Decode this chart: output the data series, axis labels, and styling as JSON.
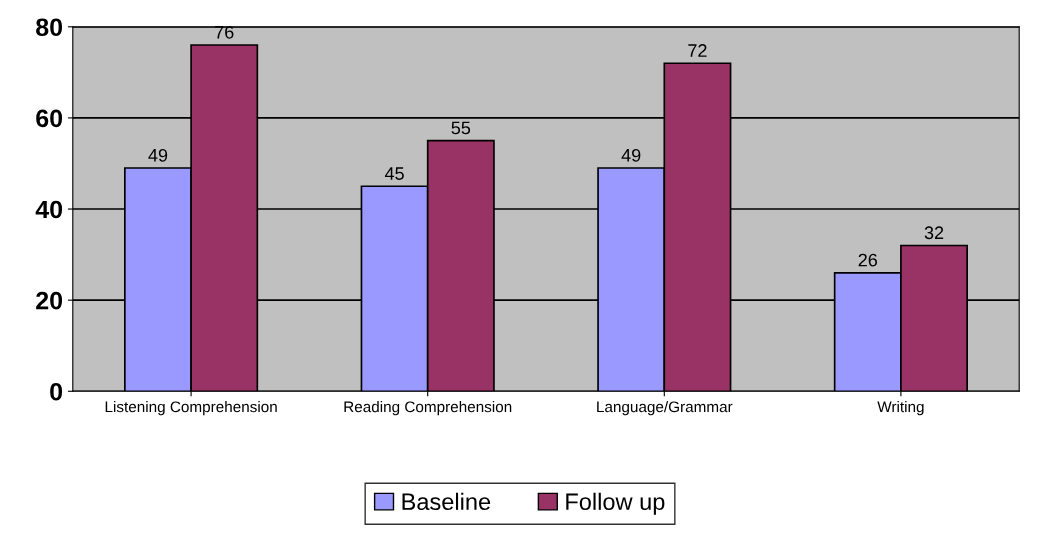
{
  "chart_data": {
    "type": "bar",
    "categories": [
      "Listening Comprehension",
      "Reading Comprehension",
      "Language/Grammar",
      "Writing"
    ],
    "series": [
      {
        "name": "Baseline",
        "color": "#9999ff",
        "values": [
          49,
          45,
          49,
          26
        ]
      },
      {
        "name": "Follow up",
        "color": "#993366",
        "values": [
          76,
          55,
          72,
          32
        ]
      }
    ],
    "ylim": [
      0,
      80
    ],
    "yticks": [
      0,
      20,
      40,
      60,
      80
    ],
    "grid": "y",
    "legend": "bottom",
    "data_labels": true
  }
}
